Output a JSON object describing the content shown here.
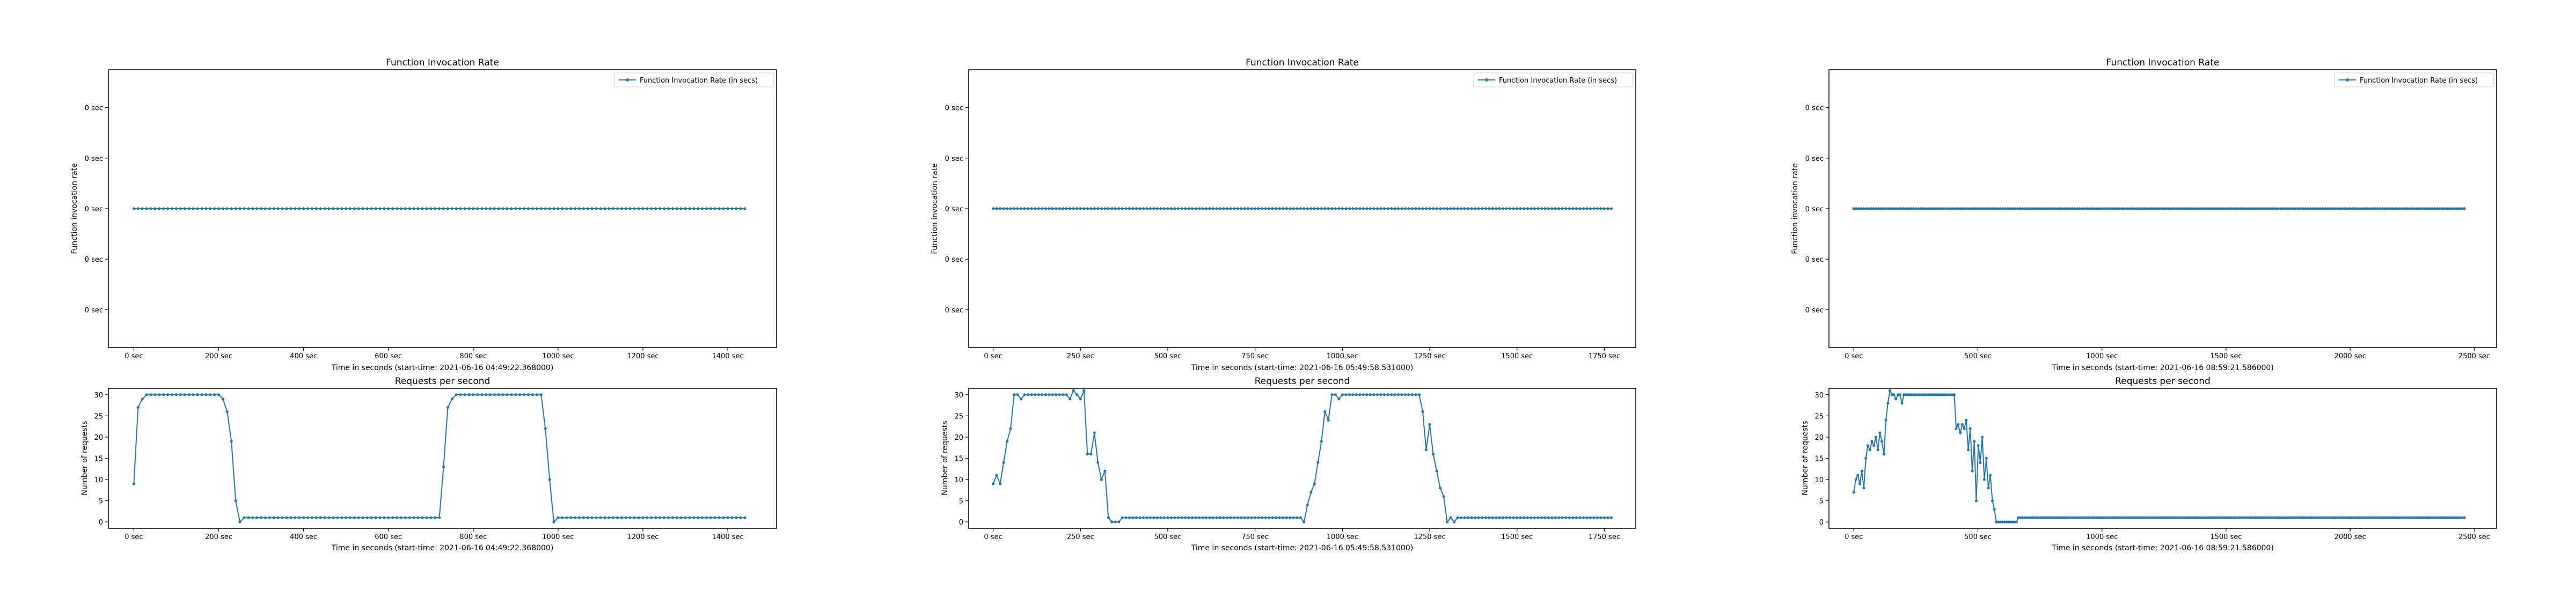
{
  "colors": {
    "line": "#1f77b4",
    "axes": "#000000",
    "background": "#ffffff"
  },
  "chart_data": [
    {
      "type": "line",
      "title": "Function Invocation Rate",
      "xlabel": "Time in seconds (start-time: 2021-06-16 04:49:22.368000)",
      "ylabel": "Function invocation rate",
      "legend": {
        "label": "Function Invocation Rate (in secs)",
        "placement": "top-right"
      },
      "xlim": [
        -60,
        1515
      ],
      "ylim": [
        -0.055,
        0.055
      ],
      "xticks": [
        0,
        200,
        400,
        600,
        800,
        1000,
        1200,
        1400
      ],
      "xtick_labels": [
        "0 sec",
        "200 sec",
        "400 sec",
        "600 sec",
        "800 sec",
        "1000 sec",
        "1200 sec",
        "1400 sec"
      ],
      "yticks": [
        -0.04,
        -0.02,
        0,
        0.02,
        0.04
      ],
      "ytick_labels": [
        "0 sec",
        "0 sec",
        "0 sec",
        "0 sec",
        "0 sec"
      ],
      "marker": true,
      "series": [
        {
          "name": "Function Invocation Rate (in secs)",
          "x_start": 0,
          "x_end": 1440,
          "x_step": 10,
          "segments": [
            {
              "x_end": 1440,
              "value": 0
            }
          ]
        }
      ]
    },
    {
      "type": "line",
      "title": "Requests per second",
      "xlabel": "Time in seconds (start-time: 2021-06-16 04:49:22.368000)",
      "ylabel": "Number of requests",
      "xlim": [
        -60,
        1515
      ],
      "ylim": [
        -1.5,
        31.5
      ],
      "xticks": [
        0,
        200,
        400,
        600,
        800,
        1000,
        1200,
        1400
      ],
      "xtick_labels": [
        "0 sec",
        "200 sec",
        "400 sec",
        "600 sec",
        "800 sec",
        "1000 sec",
        "1200 sec",
        "1400 sec"
      ],
      "yticks": [
        0,
        5,
        10,
        15,
        20,
        25,
        30
      ],
      "ytick_labels": [
        "0",
        "5",
        "10",
        "15",
        "20",
        "25",
        "30"
      ],
      "marker": true,
      "series": [
        {
          "name": "",
          "x_start": 0,
          "x_end": 1440,
          "x_step": 10,
          "values": [
            9,
            27,
            29,
            30,
            30,
            30,
            30,
            30,
            30,
            30,
            30,
            30,
            30,
            30,
            30,
            30,
            30,
            30,
            30,
            30,
            30,
            29,
            26,
            19,
            5,
            0,
            1,
            1,
            1,
            1,
            1,
            1,
            1,
            1,
            1,
            1,
            1,
            1,
            1,
            1,
            1,
            1,
            1,
            1,
            1,
            1,
            1,
            1,
            1,
            1,
            1,
            1,
            1,
            1,
            1,
            1,
            1,
            1,
            1,
            1,
            1,
            1,
            1,
            1,
            1,
            1,
            1,
            1,
            1,
            1,
            1,
            1,
            1,
            13,
            27,
            29,
            30,
            30,
            30,
            30,
            30,
            30,
            30,
            30,
            30,
            30,
            30,
            30,
            30,
            30,
            30,
            30,
            30,
            30,
            30,
            30,
            30,
            22,
            10,
            0,
            1,
            1,
            1,
            1,
            1,
            1,
            1,
            1,
            1,
            1,
            1,
            1,
            1,
            1,
            1,
            1,
            1,
            1,
            1,
            1,
            1,
            1,
            1,
            1,
            1,
            1,
            1,
            1,
            1,
            1,
            1,
            1,
            1,
            1,
            1,
            1,
            1,
            1,
            1,
            1,
            1,
            1,
            1,
            1,
            1
          ]
        }
      ]
    },
    {
      "type": "line",
      "title": "Function Invocation Rate",
      "xlabel": "Time in seconds (start-time: 2021-06-16 05:49:58.531000)",
      "ylabel": "Function invocation rate",
      "legend": {
        "label": "Function Invocation Rate (in secs)",
        "placement": "top-right"
      },
      "xlim": [
        -70,
        1840
      ],
      "ylim": [
        -0.055,
        0.055
      ],
      "xticks": [
        0,
        250,
        500,
        750,
        1000,
        1250,
        1500,
        1750
      ],
      "xtick_labels": [
        "0 sec",
        "250 sec",
        "500 sec",
        "750 sec",
        "1000 sec",
        "1250 sec",
        "1500 sec",
        "1750 sec"
      ],
      "yticks": [
        -0.04,
        -0.02,
        0,
        0.02,
        0.04
      ],
      "ytick_labels": [
        "0 sec",
        "0 sec",
        "0 sec",
        "0 sec",
        "0 sec"
      ],
      "marker": true,
      "series": [
        {
          "name": "Function Invocation Rate (in secs)",
          "x_start": 0,
          "x_end": 1770,
          "x_step": 10,
          "segments": [
            {
              "x_end": 1770,
              "value": 0
            }
          ]
        }
      ]
    },
    {
      "type": "line",
      "title": "Requests per second",
      "xlabel": "Time in seconds (start-time: 2021-06-16 05:49:58.531000)",
      "ylabel": "Number of requests",
      "xlim": [
        -70,
        1840
      ],
      "ylim": [
        -1.5,
        31.5
      ],
      "xticks": [
        0,
        250,
        500,
        750,
        1000,
        1250,
        1500,
        1750
      ],
      "xtick_labels": [
        "0 sec",
        "250 sec",
        "500 sec",
        "750 sec",
        "1000 sec",
        "1250 sec",
        "1500 sec",
        "1750 sec"
      ],
      "yticks": [
        0,
        5,
        10,
        15,
        20,
        25,
        30
      ],
      "ytick_labels": [
        "0",
        "5",
        "10",
        "15",
        "20",
        "25",
        "30"
      ],
      "marker": true,
      "series": [
        {
          "name": "",
          "x_start": 0,
          "x_end": 1770,
          "x_step": 10,
          "values": [
            9,
            11,
            9,
            14,
            19,
            22,
            30,
            30,
            29,
            30,
            30,
            30,
            30,
            30,
            30,
            30,
            30,
            30,
            30,
            30,
            30,
            30,
            29,
            31,
            30,
            29,
            31,
            16,
            16,
            21,
            14,
            10,
            12,
            1,
            0,
            0,
            0,
            1,
            1,
            1,
            1,
            1,
            1,
            1,
            1,
            1,
            1,
            1,
            1,
            1,
            1,
            1,
            1,
            1,
            1,
            1,
            1,
            1,
            1,
            1,
            1,
            1,
            1,
            1,
            1,
            1,
            1,
            1,
            1,
            1,
            1,
            1,
            1,
            1,
            1,
            1,
            1,
            1,
            1,
            1,
            1,
            1,
            1,
            1,
            1,
            1,
            1,
            1,
            1,
            0,
            4,
            7,
            9,
            14,
            19,
            26,
            24,
            30,
            30,
            29,
            30,
            30,
            30,
            30,
            30,
            30,
            30,
            30,
            30,
            30,
            30,
            30,
            30,
            30,
            30,
            30,
            30,
            30,
            30,
            30,
            30,
            30,
            30,
            26,
            17,
            23,
            16,
            12,
            8,
            6,
            0,
            1,
            0,
            1,
            1,
            1,
            1,
            1,
            1,
            1,
            1,
            1,
            1,
            1,
            1,
            1,
            1,
            1,
            1,
            1,
            1,
            1,
            1,
            1,
            1,
            1,
            1,
            1,
            1,
            1,
            1,
            1,
            1,
            1,
            1,
            1,
            1,
            1,
            1,
            1,
            1,
            1,
            1,
            1,
            1,
            1,
            1,
            1
          ]
        }
      ]
    },
    {
      "type": "line",
      "title": "Function Invocation Rate",
      "xlabel": "Time in seconds (start-time: 2021-06-16 08:59:21.586000)",
      "ylabel": "Function invocation rate",
      "legend": {
        "label": "Function Invocation Rate (in secs)",
        "placement": "top-right"
      },
      "xlim": [
        -100,
        2590
      ],
      "ylim": [
        -0.055,
        0.055
      ],
      "xticks": [
        0,
        500,
        1000,
        1500,
        2000,
        2500
      ],
      "xtick_labels": [
        "0 sec",
        "500 sec",
        "1000 sec",
        "1500 sec",
        "2000 sec",
        "2500 sec"
      ],
      "yticks": [
        -0.04,
        -0.02,
        0,
        0.02,
        0.04
      ],
      "ytick_labels": [
        "0 sec",
        "0 sec",
        "0 sec",
        "0 sec",
        "0 sec"
      ],
      "marker": true,
      "series": [
        {
          "name": "Function Invocation Rate (in secs)",
          "x_start": 0,
          "x_end": 2460,
          "x_step": 10,
          "segments": [
            {
              "x_end": 2460,
              "value": 0
            }
          ]
        }
      ]
    },
    {
      "type": "line",
      "title": "Requests per second",
      "xlabel": "Time in seconds (start-time: 2021-06-16 08:59:21.586000)",
      "ylabel": "Number of requests",
      "xlim": [
        -100,
        2590
      ],
      "ylim": [
        -1.5,
        31.5
      ],
      "xticks": [
        0,
        500,
        1000,
        1500,
        2000,
        2500
      ],
      "xtick_labels": [
        "0 sec",
        "500 sec",
        "1000 sec",
        "1500 sec",
        "2000 sec",
        "2500 sec"
      ],
      "yticks": [
        0,
        5,
        10,
        15,
        20,
        25,
        30
      ],
      "ytick_labels": [
        "0",
        "5",
        "10",
        "15",
        "20",
        "25",
        "30"
      ],
      "marker": true,
      "series": [
        {
          "name": "",
          "x_start": 0,
          "x_end": 2460,
          "x_step": 10,
          "values": [
            7,
            10,
            11,
            9,
            12,
            8,
            15,
            18,
            17,
            19,
            18,
            20,
            17,
            21,
            19,
            16,
            24,
            28,
            31,
            30,
            30,
            29,
            30,
            30,
            28,
            30,
            30,
            30,
            30,
            30,
            30,
            30,
            30,
            30,
            30,
            30,
            30,
            30,
            30,
            30,
            30,
            30,
            30,
            30,
            30,
            30,
            30,
            30,
            30,
            30,
            30,
            22,
            23,
            21,
            23,
            22,
            24,
            17,
            22,
            12,
            19,
            5,
            18,
            14,
            20,
            10,
            15,
            8,
            11,
            5,
            3,
            0,
            0,
            0,
            0,
            0,
            0,
            0,
            0,
            0,
            0,
            0,
            1,
            1,
            1,
            1,
            1,
            1,
            1,
            1,
            1,
            1,
            1,
            1,
            1,
            1,
            1,
            1,
            1,
            1,
            1,
            1,
            1,
            1,
            1,
            1,
            1,
            1,
            1,
            1,
            1,
            1,
            1,
            1,
            1,
            1,
            1,
            1,
            1,
            1,
            1,
            1,
            1,
            1,
            1,
            1,
            1,
            1,
            1,
            1,
            1,
            1,
            1,
            1,
            1,
            1,
            1,
            1,
            1,
            1,
            1,
            1,
            1,
            1,
            1,
            1,
            1,
            1,
            1,
            1,
            1,
            1,
            1,
            1,
            1,
            1,
            1,
            1,
            1,
            1,
            1,
            1,
            1,
            1,
            1,
            1,
            1,
            1,
            1,
            1,
            1,
            1,
            1,
            1,
            1,
            1,
            1,
            1,
            1,
            1,
            1,
            1,
            1,
            1,
            1,
            1,
            1,
            1,
            1,
            1,
            1,
            1,
            1,
            1,
            1,
            1,
            1,
            1,
            1,
            1,
            1,
            1,
            1,
            1,
            1,
            1,
            1,
            1,
            1,
            1,
            1,
            1,
            1,
            1,
            1,
            1,
            1,
            1,
            1,
            1,
            1,
            1,
            1,
            1,
            1,
            1,
            1,
            1,
            1,
            1,
            1,
            1,
            1,
            1,
            1,
            1,
            1,
            1,
            1,
            1,
            1,
            1,
            1,
            1,
            1,
            1,
            1,
            1,
            1,
            1,
            1,
            1,
            1,
            1,
            1,
            1,
            1,
            1,
            1,
            1,
            1,
            1,
            1,
            1,
            1,
            1,
            1,
            1,
            1,
            1,
            1,
            1,
            1,
            1,
            1,
            1,
            1,
            1,
            1,
            1,
            1,
            1,
            1,
            1,
            1,
            1,
            1,
            1,
            1,
            1,
            1,
            1,
            1,
            1,
            1,
            1,
            1,
            1,
            1,
            1,
            1,
            1,
            1,
            1,
            1
          ]
        }
      ]
    }
  ]
}
